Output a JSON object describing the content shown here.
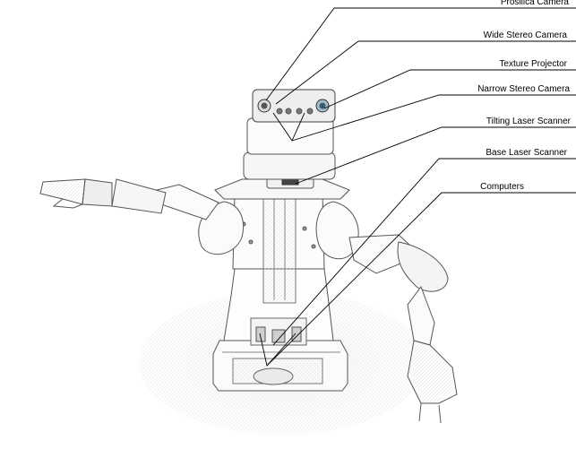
{
  "diagram": {
    "labels": [
      "Prosilica Camera",
      "Wide Stereo Camera",
      "Texture Projector",
      "Narrow Stereo Camera",
      "Tilting Laser Scanner",
      "Base Laser Scanner",
      "Computers"
    ]
  },
  "colors": {
    "ink": "#000000",
    "sketch": "#6a6a6a",
    "shadow": "#d8d8d8",
    "background": "#ffffff"
  }
}
